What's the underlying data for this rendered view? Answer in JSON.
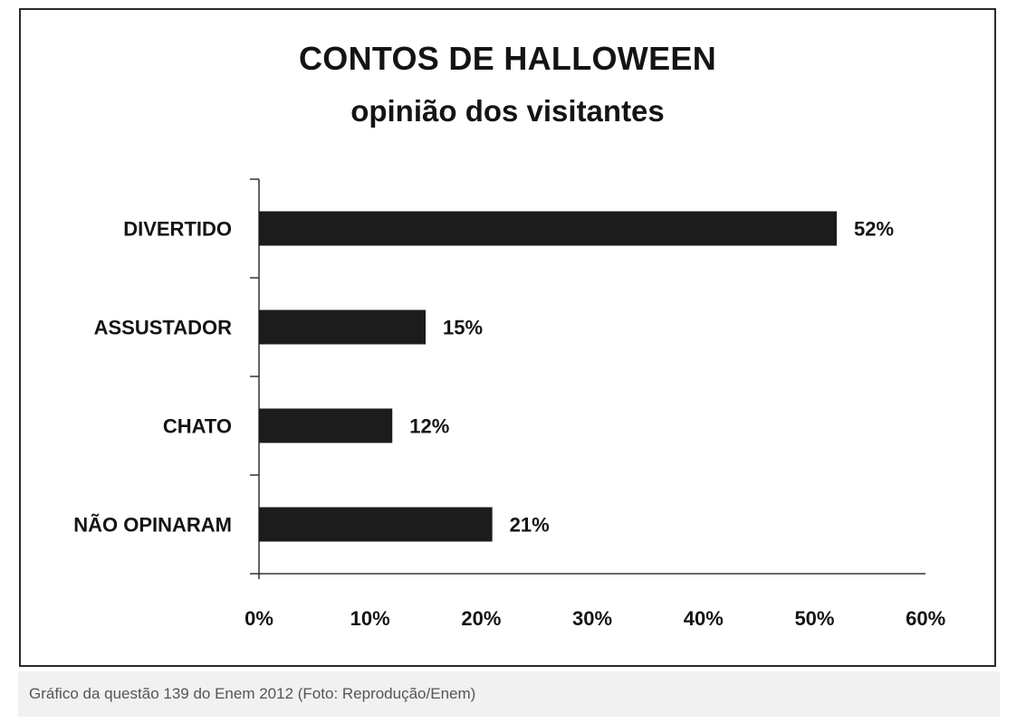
{
  "chart_data": {
    "type": "bar",
    "orientation": "horizontal",
    "title": "CONTOS DE HALLOWEEN",
    "subtitle": "opinião dos visitantes",
    "categories": [
      "DIVERTIDO",
      "ASSUSTADOR",
      "CHATO",
      "NÃO OPINARAM"
    ],
    "values": [
      52,
      15,
      12,
      21
    ],
    "data_labels": [
      "52%",
      "15%",
      "12%",
      "21%"
    ],
    "xlim": [
      0,
      60
    ],
    "x_ticks": [
      0,
      10,
      20,
      30,
      40,
      50,
      60
    ],
    "x_tick_labels": [
      "0%",
      "10%",
      "20%",
      "30%",
      "40%",
      "50%",
      "60%"
    ],
    "grid": false,
    "bar_color": "#1c1c1c"
  },
  "caption": "Gráfico da questão 139 do Enem 2012 (Foto: Reprodução/Enem)"
}
